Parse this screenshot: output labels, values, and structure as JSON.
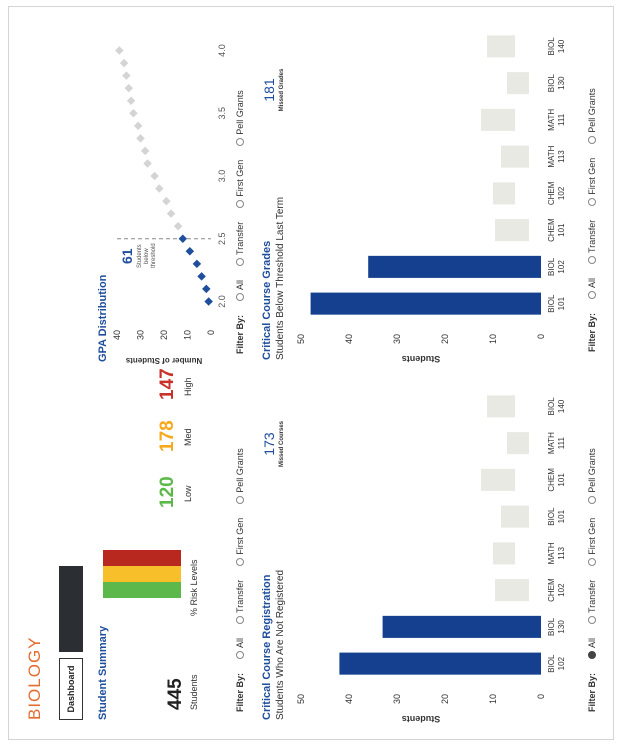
{
  "app": {
    "title": "BIOLOGY"
  },
  "tabs": [
    {
      "label": "Dashboard"
    },
    {
      "label": ""
    }
  ],
  "summary": {
    "title": "Student Summary",
    "students_count": "445",
    "students_label": "Students",
    "risk_label": "% Risk Levels",
    "low_value": "120",
    "low_label": "Low",
    "med_value": "178",
    "med_label": "Med",
    "high_value": "147",
    "high_label": "High",
    "colors": {
      "low": "#5cb84a",
      "med": "#f7c02a",
      "high": "#b9281f"
    }
  },
  "gpa": {
    "title": "GPA Distribution",
    "below_count": "61",
    "below_label_1": "Students",
    "below_label_2": "below",
    "below_label_3": "threshold"
  },
  "registration": {
    "title": "Critical Course Registration",
    "subtitle": "Students Who Are Not Registered",
    "missed_value": "173",
    "missed_label": "Missed Courses"
  },
  "grades": {
    "title": "Critical Course Grades",
    "subtitle": "Students Below Threshold Last Term",
    "missed_value": "181",
    "missed_label": "Missed Grades"
  },
  "filters": {
    "label": "Filter By:",
    "all": "All",
    "transfer": "Transfer",
    "first_gen": "First Gen",
    "pell": "Pell Grants"
  },
  "chart_data": [
    {
      "type": "bar",
      "name": "registration",
      "categories": [
        "BIOL 102",
        "BIOL 130",
        "CHEM 102",
        "MATH 113",
        "BIOL 101",
        "CHEM 101",
        "MATH 111",
        "BIOL 140"
      ],
      "values": [
        42,
        33,
        0,
        0,
        0,
        0,
        0,
        0
      ],
      "ylabel": "Students",
      "ylim": [
        0,
        50
      ],
      "yticks": [
        0,
        10,
        20,
        30,
        40,
        50
      ],
      "highlight_color": "#153f8f",
      "faded_color": "#e9e9e3"
    },
    {
      "type": "bar",
      "name": "grades",
      "categories": [
        "BIOL 101",
        "BIOL 102",
        "CHEM 101",
        "CHEM 102",
        "MATH 113",
        "MATH 111",
        "BIOL 130",
        "BIOL 140"
      ],
      "values": [
        48,
        36,
        0,
        0,
        0,
        0,
        0,
        0
      ],
      "ylabel": "Students",
      "ylim": [
        0,
        50
      ],
      "yticks": [
        0,
        10,
        20,
        30,
        40,
        50
      ],
      "highlight_color": "#153f8f",
      "faded_color": "#e9e9e3"
    },
    {
      "type": "scatter",
      "name": "gpa",
      "x": [
        2.0,
        2.1,
        2.2,
        2.3,
        2.4,
        2.5,
        2.6,
        2.7,
        2.8,
        2.9,
        3.0,
        3.1,
        3.2,
        3.3,
        3.4,
        3.5,
        3.6,
        3.7,
        3.8,
        3.9,
        4.0
      ],
      "y": [
        1,
        2,
        4,
        6,
        9,
        12,
        14,
        17,
        19,
        22,
        24,
        27,
        28,
        30,
        31,
        33,
        34,
        35,
        36,
        37,
        39
      ],
      "threshold": 2.5,
      "ylabel": "Number of Students",
      "xlim": [
        1.9,
        4.1
      ],
      "ylim": [
        0,
        40
      ],
      "xticks": [
        2.0,
        2.5,
        3.0,
        3.5,
        4.0
      ],
      "yticks": [
        0,
        10,
        20,
        30,
        40
      ],
      "below_color": "#1f4e9c",
      "above_color": "#d4d4d4"
    }
  ]
}
